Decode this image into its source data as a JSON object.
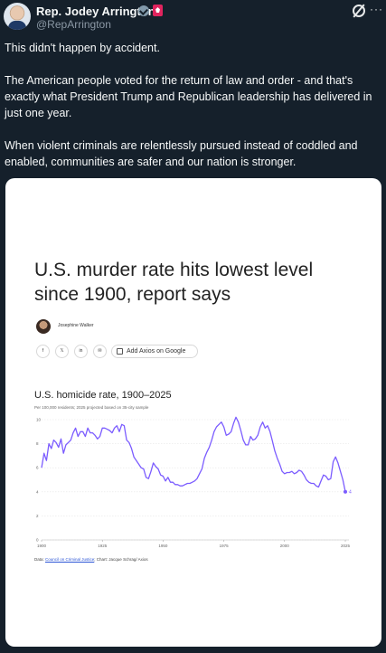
{
  "author": {
    "name": "Rep. Jodey Arrington",
    "handle": "@RepArrington"
  },
  "icons": {
    "verified": "verified-badge-icon",
    "affiliation": "government-badge-icon",
    "grok": "grok-icon",
    "more": "more-icon"
  },
  "tweet": {
    "text": "This didn't happen by accident.\n\nThe American people voted for the return of law and order - and that's exactly what President Trump and Republican leadership has delivered in just one year.\n\nWhen violent criminals are relentlessly pursued instead of coddled and enabled, communities are safer and our nation is stronger."
  },
  "article": {
    "headline": "U.S. murder rate hits lowest level since 1900, report says",
    "author": "Josephine Walker",
    "share": {
      "facebook": "f",
      "x": "𝕏",
      "linkedin": "in",
      "email": "✉",
      "add_axios": "Add Axios on Google"
    }
  },
  "chart_data": {
    "type": "line",
    "title": "U.S. homicide rate, 1900–2025",
    "subtitle": "Per 100,000 residents; 2025 projected based on 35-city sample",
    "yticks": [
      0,
      2,
      4,
      6,
      8,
      10
    ],
    "xticks": [
      1900,
      1925,
      1950,
      1975,
      2000,
      2025
    ],
    "ylim": [
      0,
      10
    ],
    "xlim": [
      1900,
      2025
    ],
    "end_label": "4",
    "color": "#7b5cff",
    "source_prefix": "Data: ",
    "source_link": "Council on Criminal Justice",
    "source_suffix": "; Chart: Jacque Schrag/ Axios",
    "series": [
      {
        "x": [
          1900,
          1901,
          1902,
          1903,
          1904,
          1905,
          1906,
          1907,
          1908,
          1909,
          1910,
          1911,
          1912,
          1913,
          1914,
          1915,
          1916,
          1917,
          1918,
          1919,
          1920,
          1921,
          1922,
          1923,
          1924,
          1925,
          1926,
          1927,
          1928,
          1929,
          1930,
          1931,
          1932,
          1933,
          1934,
          1935,
          1936,
          1937,
          1938,
          1939,
          1940,
          1941,
          1942,
          1943,
          1944,
          1945,
          1946,
          1947,
          1948,
          1949,
          1950,
          1951,
          1952,
          1953,
          1954,
          1955,
          1956,
          1957,
          1958,
          1959,
          1960,
          1961,
          1962,
          1963,
          1964,
          1965,
          1966,
          1967,
          1968,
          1969,
          1970,
          1971,
          1972,
          1973,
          1974,
          1975,
          1976,
          1977,
          1978,
          1979,
          1980,
          1981,
          1982,
          1983,
          1984,
          1985,
          1986,
          1987,
          1988,
          1989,
          1990,
          1991,
          1992,
          1993,
          1994,
          1995,
          1996,
          1997,
          1998,
          1999,
          2000,
          2001,
          2002,
          2003,
          2004,
          2005,
          2006,
          2007,
          2008,
          2009,
          2010,
          2011,
          2012,
          2013,
          2014,
          2015,
          2016,
          2017,
          2018,
          2019,
          2020,
          2021,
          2022,
          2023,
          2024,
          2025
        ],
        "y": [
          6.0,
          7.2,
          6.6,
          8.0,
          7.6,
          8.3,
          8.1,
          7.7,
          8.4,
          7.2,
          7.9,
          8.1,
          8.3,
          8.9,
          9.3,
          8.6,
          9.0,
          9.0,
          8.6,
          9.3,
          8.9,
          8.9,
          8.7,
          8.4,
          8.6,
          9.3,
          9.3,
          9.2,
          9.1,
          8.9,
          9.3,
          9.5,
          9.0,
          9.6,
          9.5,
          8.3,
          8.1,
          7.6,
          6.9,
          6.6,
          6.3,
          6.0,
          5.9,
          5.2,
          5.1,
          5.7,
          6.4,
          6.1,
          5.9,
          5.4,
          5.3,
          4.9,
          5.2,
          4.8,
          4.8,
          4.6,
          4.6,
          4.5,
          4.5,
          4.6,
          4.7,
          4.7,
          4.8,
          4.9,
          5.1,
          5.5,
          5.9,
          6.8,
          7.3,
          7.7,
          8.3,
          9.0,
          9.4,
          9.6,
          9.8,
          9.4,
          8.7,
          8.8,
          9.0,
          9.7,
          10.2,
          9.8,
          9.1,
          8.3,
          7.9,
          7.9,
          8.6,
          8.3,
          8.4,
          8.7,
          9.4,
          9.8,
          9.3,
          9.5,
          9.0,
          8.2,
          7.4,
          6.8,
          6.3,
          5.7,
          5.5,
          5.6,
          5.6,
          5.7,
          5.5,
          5.6,
          5.8,
          5.7,
          5.4,
          5.0,
          4.8,
          4.7,
          4.7,
          4.5,
          4.4,
          4.9,
          5.4,
          5.3,
          5.0,
          5.1,
          6.5,
          6.9,
          6.4,
          5.7,
          5.0,
          4.0
        ]
      }
    ]
  }
}
